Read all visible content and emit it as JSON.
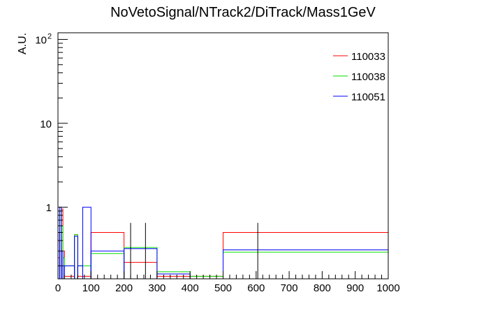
{
  "chart_data": {
    "type": "histogram",
    "title": "NoVetoSignal/NTrack2/DiTrack/Mass1GeV",
    "xlabel": "",
    "ylabel": "A.U.",
    "xlim": [
      0,
      1000
    ],
    "ylim": [
      0.14,
      120
    ],
    "yscale": "log",
    "grid": false,
    "legend_position": "top-right",
    "x_ticks": [
      {
        "value": 0,
        "label": "0"
      },
      {
        "value": 100,
        "label": "100"
      },
      {
        "value": 200,
        "label": "200"
      },
      {
        "value": 300,
        "label": "300"
      },
      {
        "value": 400,
        "label": "400"
      },
      {
        "value": 500,
        "label": "500"
      },
      {
        "value": 600,
        "label": "600"
      },
      {
        "value": 700,
        "label": "700"
      },
      {
        "value": 800,
        "label": "800"
      },
      {
        "value": 900,
        "label": "900"
      },
      {
        "value": 1000,
        "label": "1000"
      }
    ],
    "y_ticks": [
      {
        "value": 1,
        "label": "1"
      },
      {
        "value": 10,
        "label": "10"
      },
      {
        "value": 100,
        "label": "10",
        "exponent": "2"
      }
    ],
    "series": [
      {
        "name": "110033",
        "color": "#ff0000",
        "bins": [
          {
            "x0": 0,
            "x1": 5,
            "y": 0.25
          },
          {
            "x0": 5,
            "x1": 10,
            "y": 0.5
          },
          {
            "x0": 10,
            "x1": 15,
            "y": 0.95
          },
          {
            "x0": 15,
            "x1": 20,
            "y": 0.3
          },
          {
            "x0": 20,
            "x1": 50,
            "y": 0.15
          },
          {
            "x0": 50,
            "x1": 60,
            "y": 0.47
          },
          {
            "x0": 60,
            "x1": 75,
            "y": 0.15
          },
          {
            "x0": 75,
            "x1": 100,
            "y": 0.15
          },
          {
            "x0": 100,
            "x1": 200,
            "y": 0.5
          },
          {
            "x0": 200,
            "x1": 300,
            "y": 0.22
          },
          {
            "x0": 300,
            "x1": 400,
            "y": 0.15
          },
          {
            "x0": 400,
            "x1": 500,
            "y": 0.15
          },
          {
            "x0": 500,
            "x1": 1000,
            "y": 0.5
          }
        ]
      },
      {
        "name": "110038",
        "color": "#00dd00",
        "bins": [
          {
            "x0": 0,
            "x1": 5,
            "y": 0.2
          },
          {
            "x0": 5,
            "x1": 10,
            "y": 0.9
          },
          {
            "x0": 10,
            "x1": 15,
            "y": 0.6
          },
          {
            "x0": 15,
            "x1": 20,
            "y": 0.25
          },
          {
            "x0": 20,
            "x1": 50,
            "y": 0.2
          },
          {
            "x0": 50,
            "x1": 60,
            "y": 0.47
          },
          {
            "x0": 60,
            "x1": 75,
            "y": 0.2
          },
          {
            "x0": 75,
            "x1": 100,
            "y": 0.2
          },
          {
            "x0": 100,
            "x1": 200,
            "y": 0.28
          },
          {
            "x0": 200,
            "x1": 300,
            "y": 0.33
          },
          {
            "x0": 300,
            "x1": 400,
            "y": 0.17
          },
          {
            "x0": 400,
            "x1": 500,
            "y": 0.15
          },
          {
            "x0": 500,
            "x1": 1000,
            "y": 0.29
          }
        ]
      },
      {
        "name": "110051",
        "color": "#0000ff",
        "bins": [
          {
            "x0": 0,
            "x1": 5,
            "y": 0.5
          },
          {
            "x0": 5,
            "x1": 10,
            "y": 1.0
          },
          {
            "x0": 10,
            "x1": 15,
            "y": 0.3
          },
          {
            "x0": 15,
            "x1": 20,
            "y": 0.2
          },
          {
            "x0": 20,
            "x1": 50,
            "y": 0.2
          },
          {
            "x0": 50,
            "x1": 60,
            "y": 0.45
          },
          {
            "x0": 60,
            "x1": 75,
            "y": 0.2
          },
          {
            "x0": 75,
            "x1": 100,
            "y": 1.0
          },
          {
            "x0": 100,
            "x1": 200,
            "y": 0.3
          },
          {
            "x0": 200,
            "x1": 300,
            "y": 0.32
          },
          {
            "x0": 300,
            "x1": 400,
            "y": 0.16
          },
          {
            "x0": 400,
            "x1": 500,
            "y": 0.14
          },
          {
            "x0": 500,
            "x1": 1000,
            "y": 0.31
          }
        ]
      }
    ],
    "error_bars": [
      {
        "x": 220,
        "low": 0.14,
        "high": 0.65
      },
      {
        "x": 265,
        "low": 0.14,
        "high": 0.65
      },
      {
        "x": 605,
        "low": 0.14,
        "high": 0.65
      }
    ]
  }
}
